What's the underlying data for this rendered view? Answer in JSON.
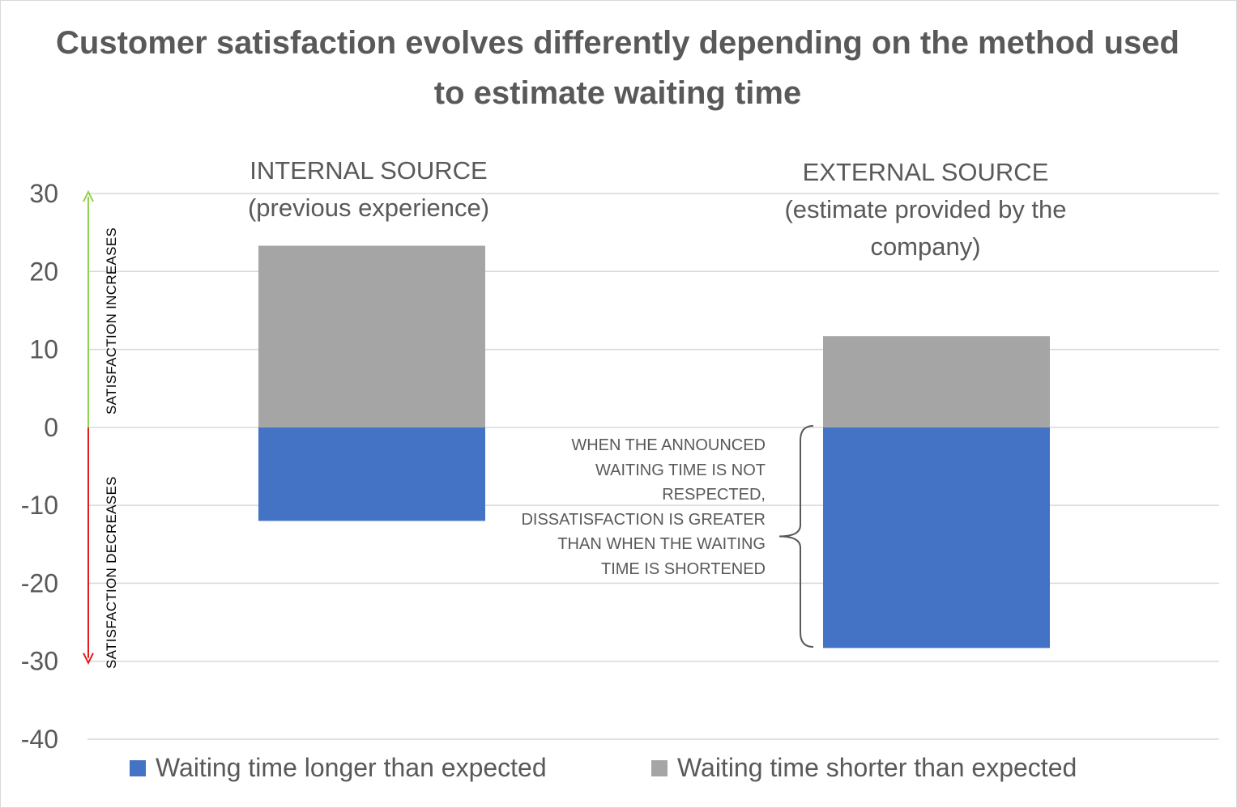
{
  "chart_data": {
    "type": "bar",
    "stacked": true,
    "title": "Customer satisfaction evolves differently depending on the method used to estimate waiting time",
    "categories": [
      "INTERNAL SOURCE\n(previous experience)",
      "EXTERNAL SOURCE\n(estimate provided by the company)"
    ],
    "category_labels": [
      "INTERNAL SOURCE\n(previous experience)",
      "EXTERNAL SOURCE\n(estimate provided by the\ncompany)"
    ],
    "series": [
      {
        "name": "Waiting time longer than expected",
        "values": [
          -12,
          -28.3
        ],
        "color": "#4472c4"
      },
      {
        "name": "Waiting time shorter than expected",
        "values": [
          23.3,
          11.7
        ],
        "color": "#a5a5a5"
      }
    ],
    "ylim": [
      -40,
      30
    ],
    "yticks": [
      30,
      20,
      10,
      0,
      -10,
      -20,
      -30,
      -40
    ],
    "xlabel": "",
    "ylabel": "",
    "grid": true,
    "legend": "bottom",
    "axis_captions": {
      "up": "SATISFACTION  INCREASES",
      "down": "SATISFACTION DECREASES",
      "up_color": "#92d050",
      "down_color": "#e41a1c"
    },
    "annotation": "WHEN THE ANNOUNCED WAITING TIME IS NOT RESPECTED, DISSATISFACTION  IS GREATER THAN WHEN THE WAITING TIME IS SHORTENED"
  }
}
